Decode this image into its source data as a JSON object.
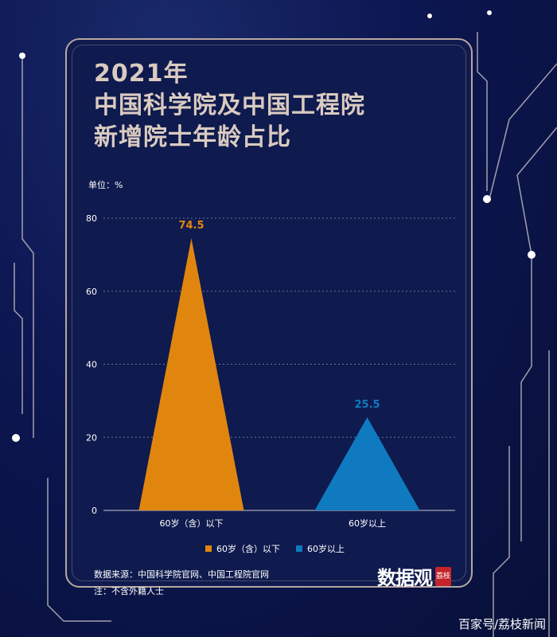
{
  "title": {
    "line1": "2021年",
    "line2": "中国科学院及中国工程院",
    "line3": "新增院士年龄占比"
  },
  "unit_label": "单位：%",
  "legend": {
    "items": [
      {
        "label": "60岁（含）以下",
        "color": "#e0860f"
      },
      {
        "label": "60岁以上",
        "color": "#0f7ac0"
      }
    ]
  },
  "footer": {
    "source": "数据来源：中国科学院官网、中国工程院官网",
    "note": "注：不含外籍人士"
  },
  "brand": {
    "name": "数据观",
    "badge": "荔枝"
  },
  "watermark": "百家号/荔枝新闻",
  "colors": {
    "background": "#0c1650",
    "panel": "#0f1a4e",
    "title": "#d9cbc0",
    "orange": "#e0860f",
    "blue": "#0f7ac0",
    "gridline": "#6b7394"
  },
  "chart_data": {
    "type": "bar",
    "categories": [
      "60岁（含）以下",
      "60岁以上"
    ],
    "values": [
      74.5,
      25.5
    ],
    "value_labels": [
      "74.5",
      "25.5"
    ],
    "colors": [
      "#e0860f",
      "#0f7ac0"
    ],
    "yticks": [
      "0",
      "20",
      "40",
      "60",
      "80"
    ],
    "ytick_values": [
      0,
      20,
      40,
      60,
      80
    ],
    "ylim": [
      0,
      80
    ],
    "mark_shape": "triangle",
    "grid": true,
    "legend_position": "bottom"
  }
}
